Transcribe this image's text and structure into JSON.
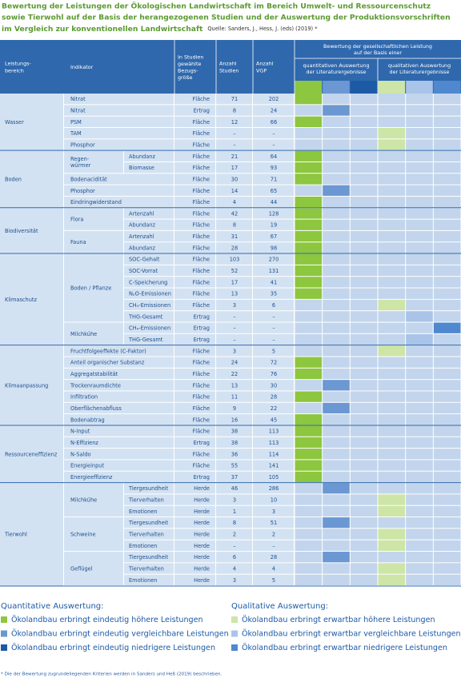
{
  "header": {
    "title": [
      "Bewertung der Leistungen der Ökologischen Landwirtschaft im Bereich Umwelt- und Ressourcenschutz",
      "sowie Tierwohl auf der Basis der herangezogenen Studien und der Auswertung der Produktionsvorschriften",
      "im Vergleich zur konventionellen Landwirtschaft"
    ],
    "source": "Quelle: Sanders, J., Hess, J. (eds) (2019) *"
  },
  "table": {
    "columns": {
      "area": [
        "Leistungs-",
        "bereich"
      ],
      "indicator": "Indikator",
      "unit": [
        "In Studien",
        "gewählte",
        "Bezugs-",
        "größe"
      ],
      "studies": [
        "Anzahl",
        "Studien"
      ],
      "vgp": [
        "Anzahl",
        "VGP"
      ],
      "rating": [
        "Bewertung der gesellschaftlichen Leistung",
        "auf der Basis einer"
      ],
      "quantitative": [
        "quantitativen Auswertung",
        "der Literaturergebnisse"
      ],
      "qualitative": [
        "qualitativen Auswertung",
        "der Literaturergebnisse"
      ]
    },
    "groups": [
      {
        "label": "Wasser",
        "items": [
          {
            "indicator": "Nitrat",
            "unit": "Fläche",
            "studies": 71,
            "vgp": 202,
            "color": "#8dc63f"
          },
          {
            "indicator": "Nitrat",
            "unit": "Ertrag",
            "studies": 8,
            "vgp": 24,
            "color": "#6b98d2"
          },
          {
            "indicator": "PSM",
            "unit": "Fläche",
            "studies": 12,
            "vgp": 66,
            "color": "#8dc63f"
          },
          {
            "indicator": "TAM",
            "unit": "Fläche",
            "studies": "–",
            "vgp": "–",
            "color": "#cde5a6"
          },
          {
            "indicator": "Phosphor",
            "unit": "Fläche",
            "studies": "–",
            "vgp": "–",
            "color": "#cde5a6"
          }
        ]
      },
      {
        "label": "Boden",
        "items": [
          {
            "indicator": "Regen-würmer",
            "rows": [
              {
                "indicator": "Abundanz",
                "unit": "Fläche",
                "studies": 21,
                "vgp": 64,
                "color": "#8dc63f"
              },
              {
                "indicator": "Biomasse",
                "unit": "Fläche",
                "studies": 17,
                "vgp": 93,
                "color": "#8dc63f"
              }
            ]
          },
          {
            "indicator": "Bodenacidität",
            "unit": "Fläche",
            "studies": 30,
            "vgp": 71,
            "color": "#8dc63f"
          },
          {
            "indicator": "Phosphor",
            "unit": "Fläche",
            "studies": 14,
            "vgp": 65,
            "color": "#6b98d2"
          },
          {
            "indicator": "Eindringwiderstand",
            "unit": "Fläche",
            "studies": 4,
            "vgp": 44,
            "color": "#8dc63f"
          }
        ]
      },
      {
        "label": "Biodiversität",
        "items": [
          {
            "indicator": "Flora",
            "rows": [
              {
                "indicator": "Artenzahl",
                "unit": "Fläche",
                "studies": 42,
                "vgp": 128,
                "color": "#8dc63f"
              },
              {
                "indicator": "Abundanz",
                "unit": "Fläche",
                "studies": 8,
                "vgp": 19,
                "color": "#8dc63f"
              }
            ]
          },
          {
            "indicator": "Fauna",
            "rows": [
              {
                "indicator": "Artenzahl",
                "unit": "Fläche",
                "studies": 31,
                "vgp": 67,
                "color": "#8dc63f"
              },
              {
                "indicator": "Abundanz",
                "unit": "Fläche",
                "studies": 28,
                "vgp": 98,
                "color": "#8dc63f"
              }
            ]
          }
        ]
      },
      {
        "label": "Klimaschutz",
        "items": [
          {
            "indicator": "Boden / Pflanze",
            "rows": [
              {
                "indicator": "SOC-Gehalt",
                "unit": "Fläche",
                "studies": 103,
                "vgp": 270,
                "color": "#8dc63f"
              },
              {
                "indicator": "SOC-Vorrat",
                "unit": "Fläche",
                "studies": 52,
                "vgp": 131,
                "color": "#8dc63f"
              },
              {
                "indicator": "C-Speicherung",
                "unit": "Fläche",
                "studies": 17,
                "vgp": 41,
                "color": "#8dc63f"
              },
              {
                "indicator": "N₂O-Emissionen",
                "unit": "Fläche",
                "studies": 13,
                "vgp": 35,
                "color": "#8dc63f"
              },
              {
                "indicator": "CH₄-Emissionen",
                "unit": "Fläche",
                "studies": 3,
                "vgp": 6,
                "color": "#cde5a6"
              },
              {
                "indicator": "THG-Gesamt",
                "unit": "Ertrag",
                "studies": "–",
                "vgp": "–",
                "color": "#a9c4e8"
              }
            ]
          },
          {
            "indicator": "Milchkühe",
            "rows": [
              {
                "indicator": "CH₄-Emissionen",
                "unit": "Ertrag",
                "studies": "–",
                "vgp": "–",
                "color": "#4f88cf"
              },
              {
                "indicator": "THG-Gesamt",
                "unit": "Ertrag",
                "studies": "–",
                "vgp": "–",
                "color": "#a9c4e8"
              }
            ]
          }
        ]
      },
      {
        "label": "Klimaanpassung",
        "items": [
          {
            "indicator": "Fruchtfolgeeffekte (C-Faktor)",
            "unit": "Fläche",
            "studies": 3,
            "vgp": 5,
            "color": "#cde5a6"
          },
          {
            "indicator": "Anteil organischer Substanz",
            "unit": "Fläche",
            "studies": 24,
            "vgp": 72,
            "color": "#8dc63f"
          },
          {
            "indicator": "Aggregatstabilität",
            "unit": "Fläche",
            "studies": 22,
            "vgp": 76,
            "color": "#8dc63f"
          },
          {
            "indicator": "Trockenraumdichte",
            "unit": "Fläche",
            "studies": 13,
            "vgp": 30,
            "color": "#6b98d2"
          },
          {
            "indicator": "Infiltration",
            "unit": "Fläche",
            "studies": 11,
            "vgp": 28,
            "color": "#8dc63f"
          },
          {
            "indicator": "Oberflächenabfluss",
            "unit": "Fläche",
            "studies": 9,
            "vgp": 22,
            "color": "#6b98d2"
          },
          {
            "indicator": "Bodenabtrag",
            "unit": "Fläche",
            "studies": 16,
            "vgp": 45,
            "color": "#8dc63f"
          }
        ]
      },
      {
        "label": "Ressourceneffizienz",
        "items": [
          {
            "indicator": "N-Input",
            "unit": "Fläche",
            "studies": 38,
            "vgp": 113,
            "color": "#8dc63f"
          },
          {
            "indicator": "N-Effizienz",
            "unit": "Ertrag",
            "studies": 38,
            "vgp": 113,
            "color": "#8dc63f"
          },
          {
            "indicator": "N-Saldo",
            "unit": "Fläche",
            "studies": 36,
            "vgp": 114,
            "color": "#8dc63f"
          },
          {
            "indicator": "Energieinput",
            "unit": "Fläche",
            "studies": 55,
            "vgp": 141,
            "color": "#8dc63f"
          },
          {
            "indicator": "Energieeffizienz",
            "unit": "Ertrag",
            "studies": 37,
            "vgp": 105,
            "color": "#8dc63f"
          }
        ]
      },
      {
        "label": "Tierwohl",
        "items": [
          {
            "indicator": "Milchkühe",
            "rows": [
              {
                "indicator": "Tiergesundheit",
                "unit": "Herde",
                "studies": 46,
                "vgp": 286,
                "color": "#6b98d2"
              },
              {
                "indicator": "Tierverhalten",
                "unit": "Herde",
                "studies": 3,
                "vgp": 10,
                "color": "#cde5a6"
              },
              {
                "indicator": "Emotionen",
                "unit": "Herde",
                "studies": 1,
                "vgp": 3,
                "color": "#cde5a6"
              }
            ]
          },
          {
            "indicator": "Schweine",
            "rows": [
              {
                "indicator": "Tiergesundheit",
                "unit": "Herde",
                "studies": 8,
                "vgp": 51,
                "color": "#6b98d2"
              },
              {
                "indicator": "Tierverhalten",
                "unit": "Herde",
                "studies": 2,
                "vgp": 2,
                "color": "#cde5a6"
              },
              {
                "indicator": "Emotionen",
                "unit": "Herde",
                "studies": "–",
                "vgp": "–",
                "color": "#cde5a6"
              }
            ]
          },
          {
            "indicator": "Geflügel",
            "rows": [
              {
                "indicator": "Tiergesundheit",
                "unit": "Herde",
                "studies": 6,
                "vgp": 28,
                "color": "#6b98d2"
              },
              {
                "indicator": "Tierverhalten",
                "unit": "Herde",
                "studies": 4,
                "vgp": 4,
                "color": "#cde5a6"
              },
              {
                "indicator": "Emotionen",
                "unit": "Herde",
                "studies": 3,
                "vgp": 5,
                "color": "#cde5a6"
              }
            ]
          }
        ]
      }
    ]
  },
  "legend": {
    "quantitative": {
      "title": "Quantitative Auswertung:",
      "items": [
        {
          "label": "Ökolandbau erbringt eindeutig höhere Leistungen",
          "color": "#8dc63f"
        },
        {
          "label": "Ökolandbau erbringt eindeutig vergleichbare Leistungen",
          "color": "#6b98d2"
        },
        {
          "label": "Ökolandbau erbringt eindeutig niedrigere Leistungen",
          "color": "#1d5aa6"
        }
      ]
    },
    "qualitative": {
      "title": "Qualitative Auswertung:",
      "items": [
        {
          "label": "Ökolandbau erbringt erwartbar höhere Leistungen",
          "color": "#cde5a6"
        },
        {
          "label": "Ökolandbau erbringt erwartbar vergleichbare Leistungen",
          "color": "#a9c4e8"
        },
        {
          "label": "Ökolandbau erbringt erwartbar niedrigere Leistungen",
          "color": "#4f88cf"
        }
      ]
    }
  },
  "footnote": "* Die der Bewertung zugrundeliegenden Kriterien werden in Sanders und Heß (2019) beschrieben."
}
